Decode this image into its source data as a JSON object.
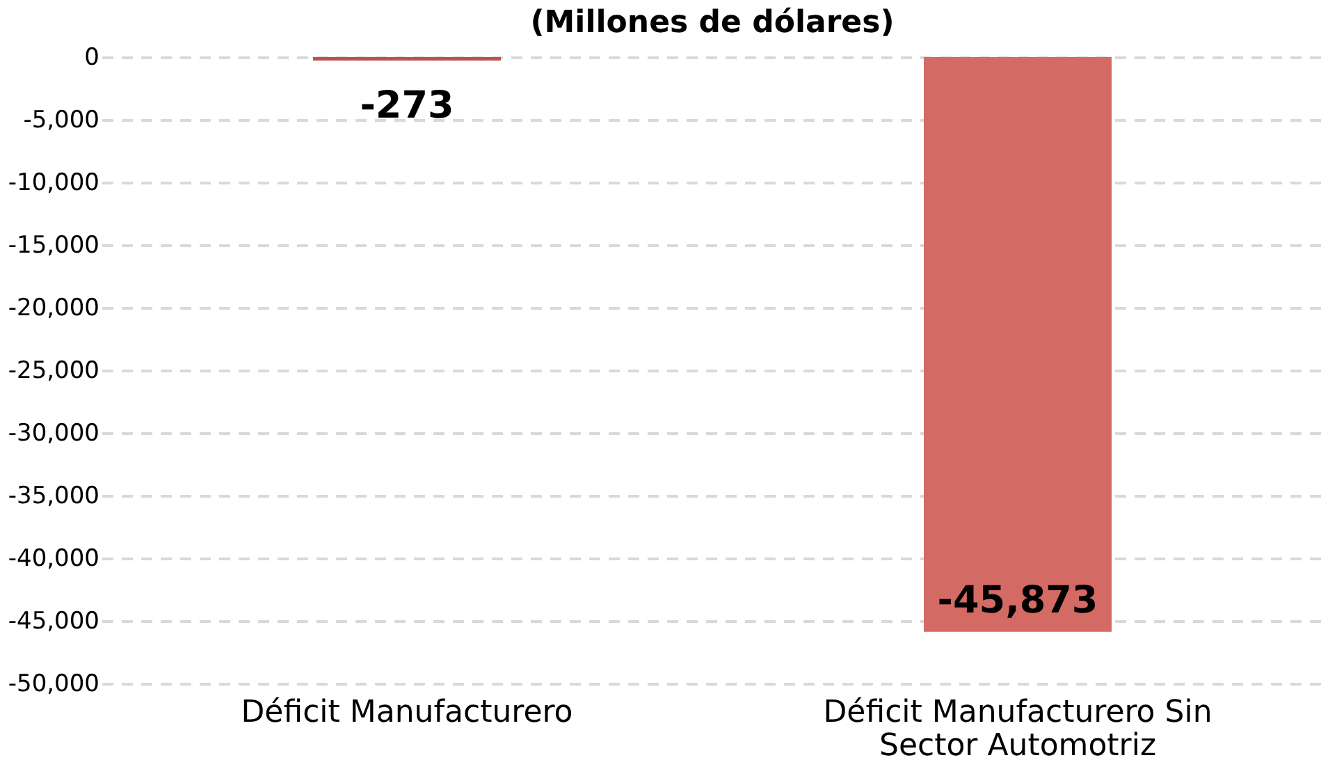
{
  "chart_data": {
    "type": "bar",
    "title": "(Millones de dólares)",
    "categories": [
      "Déficit Manufacturero",
      "Déficit Manufacturero Sin Sector Automotriz"
    ],
    "values": [
      -273,
      -45873
    ],
    "colors": [
      "#c0504d",
      "#d46a64"
    ],
    "value_labels": [
      "-273",
      "-45,873"
    ],
    "ylim": [
      -50000,
      0
    ],
    "yticks": [
      {
        "value": 0,
        "label": "0"
      },
      {
        "value": -5000,
        "label": "-5,000"
      },
      {
        "value": -10000,
        "label": "-10,000"
      },
      {
        "value": -15000,
        "label": "-15,000"
      },
      {
        "value": -20000,
        "label": "-20,000"
      },
      {
        "value": -25000,
        "label": "-25,000"
      },
      {
        "value": -30000,
        "label": "-30,000"
      },
      {
        "value": -35000,
        "label": "-35,000"
      },
      {
        "value": -40000,
        "label": "-40,000"
      },
      {
        "value": -45000,
        "label": "-45,000"
      },
      {
        "value": -50000,
        "label": "-50,000"
      }
    ],
    "grid": "y"
  }
}
